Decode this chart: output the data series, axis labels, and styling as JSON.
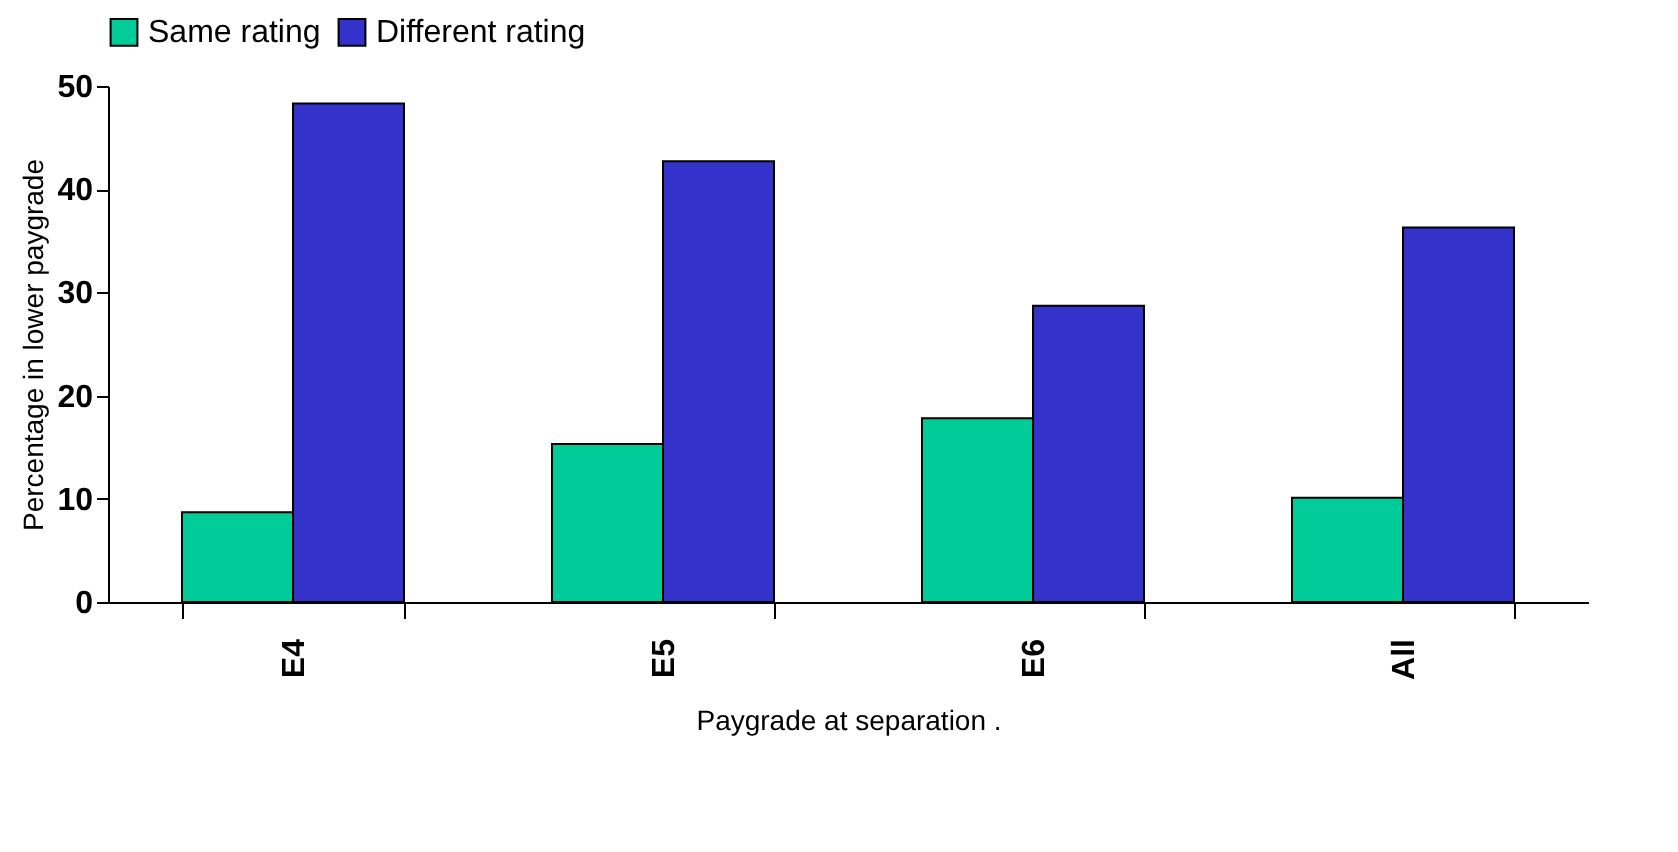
{
  "chart_data": {
    "type": "bar",
    "xlabel": "Paygrade at separation .",
    "ylabel": "Percentage in lower paygrade",
    "categories": [
      "E4",
      "E5",
      "E6",
      "All"
    ],
    "series": [
      {
        "name": "Same rating",
        "color": "#00cc99",
        "values": [
          8.7,
          15.3,
          17.8,
          10.1
        ]
      },
      {
        "name": "Different rating",
        "color": "#3333cc",
        "values": [
          48.3,
          42.7,
          28.7,
          36.3
        ]
      }
    ],
    "ylim": [
      0,
      50
    ],
    "yticks": [
      0,
      10,
      20,
      30,
      40,
      50
    ],
    "grid": false,
    "legend": "top"
  }
}
